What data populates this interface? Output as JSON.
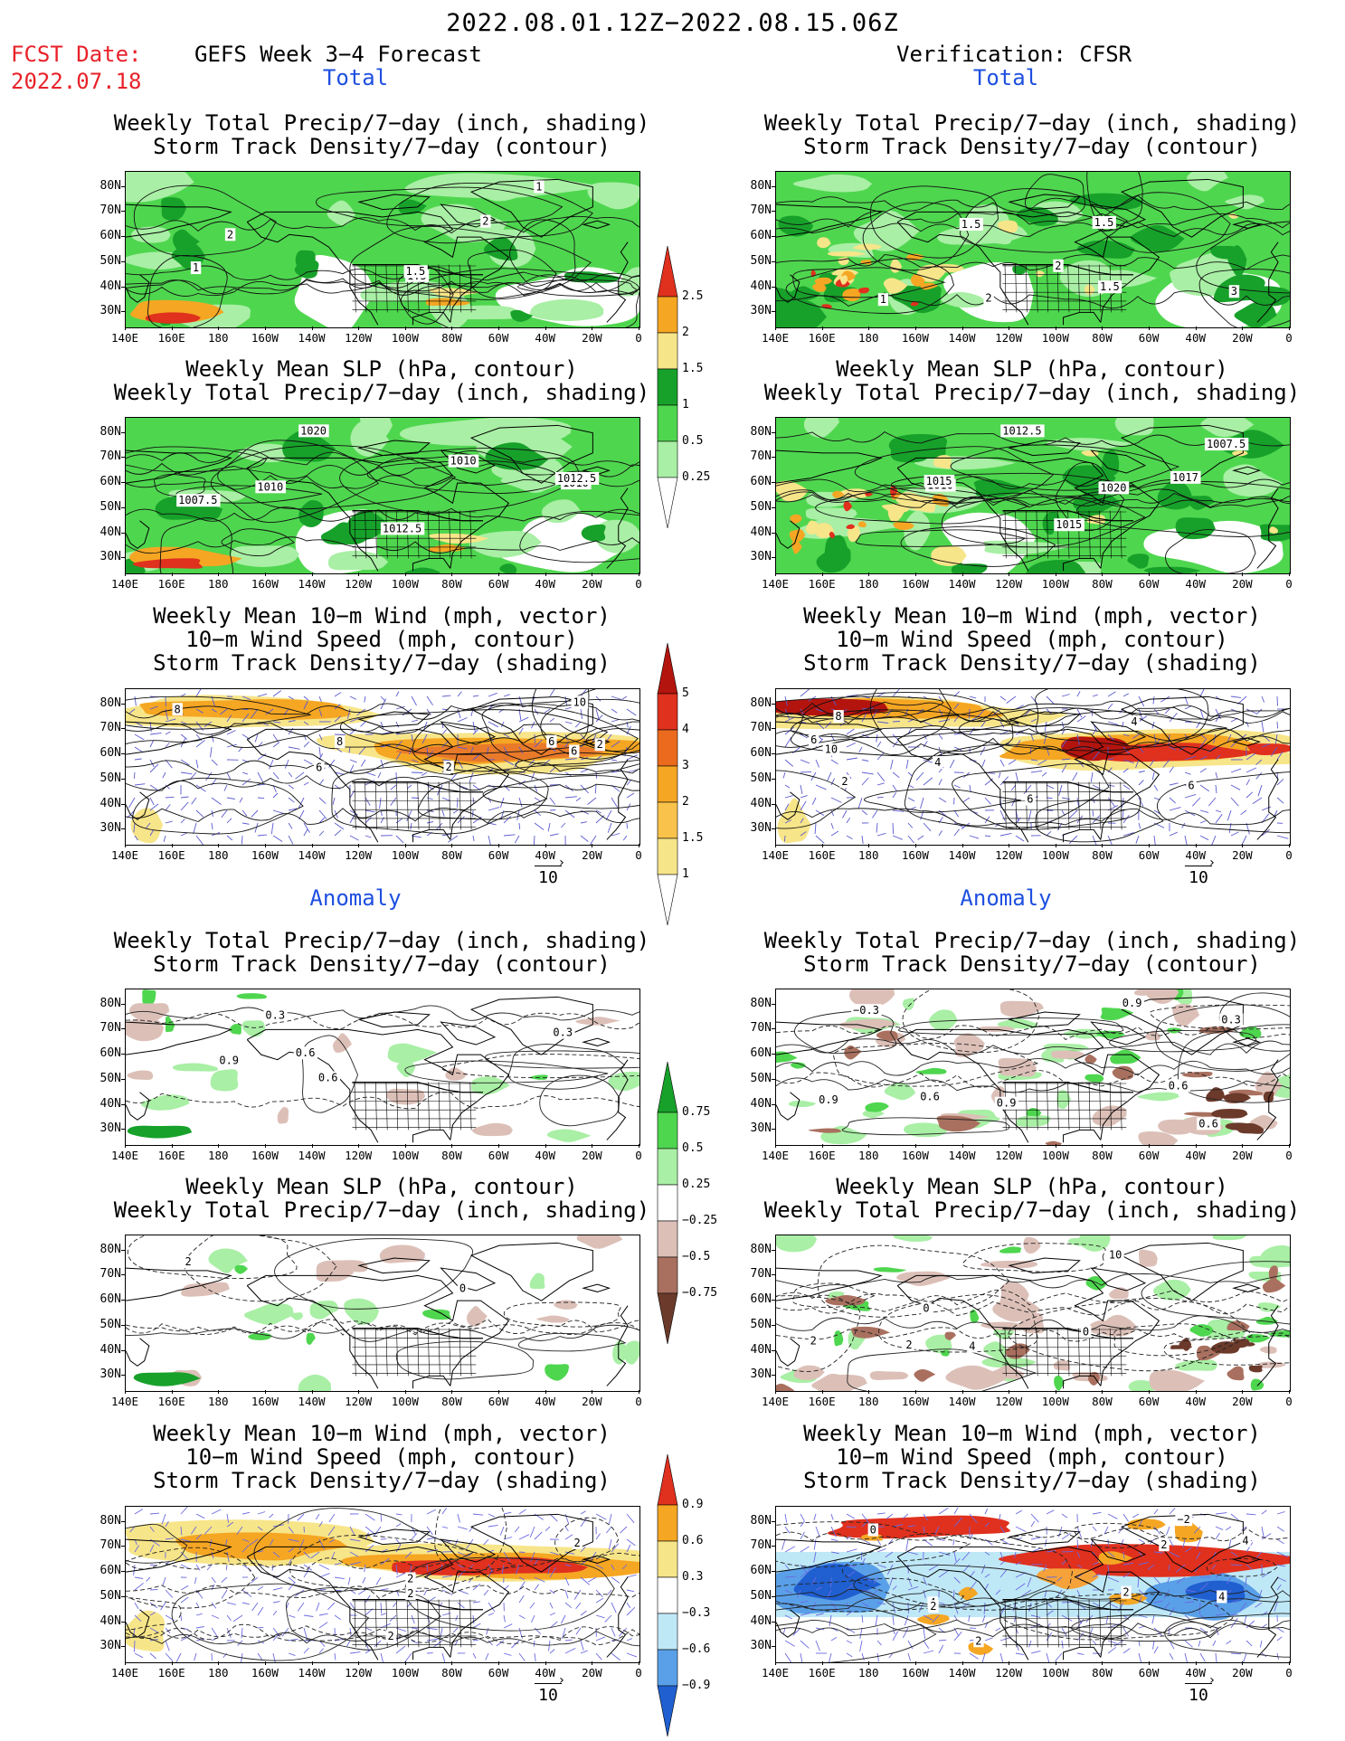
{
  "header": {
    "date_range": "2022.08.01.12Z−2022.08.15.06Z",
    "fcst_label": "FCST Date:",
    "fcst_date": "2022.07.18",
    "left_title": "GEFS Week 3−4 Forecast",
    "right_title": "Verification: CFSR"
  },
  "sections": {
    "total": "Total",
    "anomaly": "Anomaly"
  },
  "panel_titles": {
    "precip_track": "Weekly Total Precip/7−day (inch, shading)\nStorm Track Density/7−day (contour)",
    "slp_precip": "Weekly Mean SLP (hPa, contour)\nWeekly Total Precip/7−day (inch, shading)",
    "wind_track": "Weekly Mean 10−m Wind (mph, vector)\n10−m Wind Speed (mph, contour)\nStorm Track Density/7−day (shading)"
  },
  "axes": {
    "lat_labels": [
      "80N",
      "70N",
      "60N",
      "50N",
      "40N",
      "30N"
    ],
    "lon_labels": [
      "140E",
      "160E",
      "180",
      "160W",
      "140W",
      "120W",
      "100W",
      "80W",
      "60W",
      "40W",
      "20W",
      "0"
    ]
  },
  "contour_labels": {
    "p1_left": [
      "2",
      "1.5",
      "1",
      "2",
      "1.5",
      "1"
    ],
    "p1_right": [
      "1",
      "1.5",
      "2",
      "1.5",
      "2",
      "3",
      "1.5"
    ],
    "p2_left": [
      "1010",
      "1010",
      "1012.5",
      "1007.5",
      "1010",
      "1012.5",
      "1020"
    ],
    "p2_right": [
      "1007.5",
      "1010",
      "1015",
      "1012.5",
      "1015",
      "1017",
      "1020"
    ],
    "p3_left": [
      "2",
      "6",
      "10",
      "8",
      "2",
      "6",
      "8",
      "6"
    ],
    "p3_right": [
      "6",
      "2",
      "4",
      "6",
      "8",
      "10",
      "6",
      "4"
    ],
    "p4_left": [
      "0.6",
      "0.9",
      "0.6",
      "0.3",
      "0.3"
    ],
    "p4_right": [
      "0.3",
      "0.9",
      "0.6",
      "0.9",
      "0.6",
      "0.6",
      "0.9",
      "−0.3"
    ],
    "p5_left": [
      "0",
      "2"
    ],
    "p5_right": [
      "10",
      "2",
      "4",
      "0",
      "2",
      "0"
    ],
    "p6_left": [
      "2",
      "2",
      "2",
      "2"
    ],
    "p6_right": [
      "4",
      "2",
      "4",
      "2",
      "4",
      "2",
      "0",
      "2",
      "−2"
    ]
  },
  "colorbars": {
    "precip_total": [
      "2.5",
      "2",
      "1.5",
      "1",
      "0.5",
      "0.25"
    ],
    "track_total": [
      "5",
      "4",
      "3",
      "2",
      "1.5",
      "1"
    ],
    "precip_anom": [
      "0.75",
      "0.5",
      "0.25",
      "−0.25",
      "−0.5",
      "−0.75"
    ],
    "track_anom": [
      "0.9",
      "0.6",
      "0.3",
      "−0.3",
      "−0.6",
      "−0.9"
    ]
  },
  "vector_ref": "10",
  "colors": {
    "title_red": "#e8222a",
    "section_blue": "#1e4fe0",
    "green_light": "#a9efa5",
    "green": "#4fd64f",
    "green_dark": "#17a12a",
    "yellow": "#f7e589",
    "orange": "#f5a623",
    "red": "#e0301e",
    "dark_red": "#b4140e",
    "brown_light": "#dcc0b8",
    "brown": "#a9705f",
    "brown_dark": "#6b3a2b",
    "blue_light": "#bfe8f7",
    "blue": "#5aa0e8",
    "blue_dark": "#1f5fd0"
  }
}
